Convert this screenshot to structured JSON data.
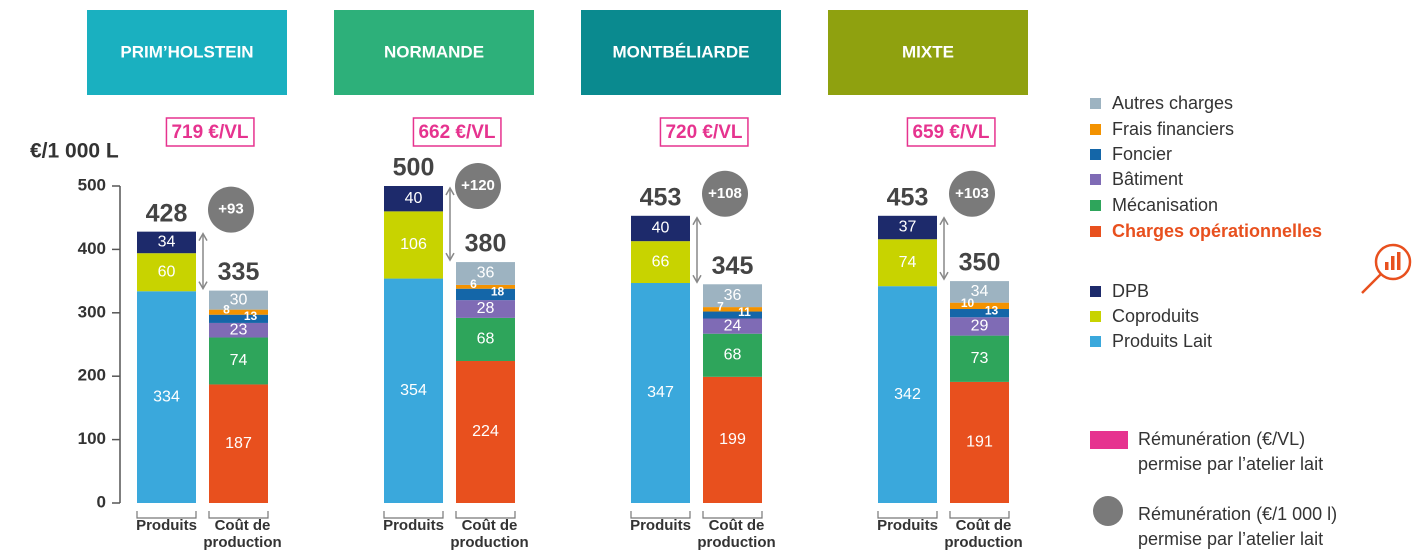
{
  "chart_data": {
    "type": "bar",
    "stacked": true,
    "y_label": "€/1 000 L",
    "ylim": [
      0,
      500
    ],
    "yticks": [
      0,
      100,
      200,
      300,
      400,
      500
    ],
    "categories": [
      [
        "Produits"
      ],
      [
        "Coût de",
        "production"
      ]
    ],
    "product_series": [
      {
        "name": "Produits Lait",
        "color": "#3aa8dc",
        "values": [
          334,
          354,
          347,
          342
        ]
      },
      {
        "name": "Coproduits",
        "color": "#c8d300",
        "values": [
          60,
          106,
          66,
          74
        ]
      },
      {
        "name": "DPB",
        "color": "#1d2a6b",
        "values": [
          34,
          40,
          40,
          37
        ]
      }
    ],
    "cost_series": [
      {
        "name": "Charges opérationnelles",
        "color": "#e8501e",
        "highlight": true,
        "values": [
          187,
          224,
          199,
          191
        ]
      },
      {
        "name": "Mécanisation",
        "color": "#2ea55b",
        "values": [
          74,
          68,
          68,
          73
        ]
      },
      {
        "name": "Bâtiment",
        "color": "#7f6bb5",
        "values": [
          23,
          28,
          24,
          29
        ]
      },
      {
        "name": "Foncier",
        "color": "#1466a8",
        "values": [
          13,
          18,
          11,
          13
        ]
      },
      {
        "name": "Frais financiers",
        "color": "#f39200",
        "values": [
          8,
          6,
          7,
          10
        ]
      },
      {
        "name": "Autres charges",
        "color": "#9db3c1",
        "values": [
          30,
          36,
          36,
          34
        ]
      }
    ],
    "groups": [
      {
        "name": "PRIM’HOLSTEIN",
        "color": "#1ab0c0",
        "remuneration": 719,
        "remuneration_label": "719 €/VL",
        "product_total": 428,
        "cost_total": 335,
        "margin": 93,
        "margin_label": "+93"
      },
      {
        "name": "NORMANDE",
        "color": "#2db07a",
        "remuneration": 662,
        "remuneration_label": "662 €/VL",
        "product_total": 500,
        "cost_total": 380,
        "margin": 120,
        "margin_label": "+120"
      },
      {
        "name": "MONTBÉLIARDE",
        "color": "#0a8a8f",
        "remuneration": 720,
        "remuneration_label": "720 €/VL",
        "product_total": 453,
        "cost_total": 345,
        "margin": 108,
        "margin_label": "+108"
      },
      {
        "name": "MIXTE",
        "color": "#8fa10f",
        "remuneration": 659,
        "remuneration_label": "659 €/VL",
        "product_total": 453,
        "cost_total": 350,
        "margin": 103,
        "margin_label": "+103"
      }
    ],
    "notes": [
      {
        "color": "#e6338f",
        "lines": [
          "Rémunération (€/VL)",
          "permise par l’atelier lait"
        ]
      },
      {
        "color": "#7a7a7a",
        "lines": [
          "Rémunération (€/1 000 l)",
          "permise par l’atelier lait"
        ]
      }
    ]
  }
}
